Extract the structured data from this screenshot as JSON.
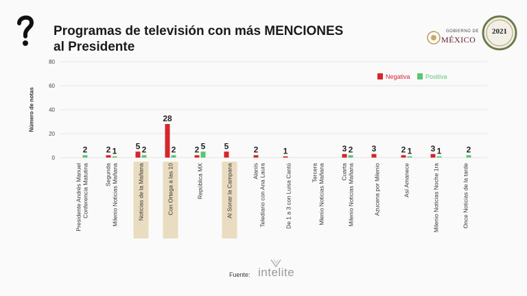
{
  "header": {
    "title_line1": "Programas de televisión con más MENCIONES",
    "title_line2": "al Presidente"
  },
  "logos": {
    "gov_small": "GOBIERNO DE",
    "gov_main": "MÉXICO",
    "seal_text": "2021"
  },
  "footer": {
    "source_label": "Fuente:",
    "brand": "intelite"
  },
  "colors": {
    "negativa": "#d7262b",
    "positiva": "#58c774",
    "highlight": "#e9dcc0"
  },
  "chart_data": {
    "type": "bar",
    "ylabel": "Número de notas",
    "ylim": [
      0,
      80
    ],
    "yticks": [
      0,
      20,
      40,
      60,
      80
    ],
    "legend": {
      "position": "top-right"
    },
    "categories": [
      [
        "Conferencia Matutina",
        "Presidente Andrés Manuel"
      ],
      [
        "Milenio Noticias Mañana",
        "Segunda"
      ],
      [
        "Noticias de la Mañana"
      ],
      [
        "Con Ortega a las 10"
      ],
      [
        "República MX"
      ],
      [
        "Al Sonar la Campana"
      ],
      [
        "Telediario con Ana Laura",
        "Alanís"
      ],
      [
        "De 1 a 3 con Luisa Cantú"
      ],
      [
        "Mlenio Noticias Mañana",
        "Tercera"
      ],
      [
        "Milenio Noticias Mañana",
        "Cuarta"
      ],
      [
        "Azucena por Milenio"
      ],
      [
        "Así Amanece"
      ],
      [
        "Milenio Noticias Noche 1ra"
      ],
      [
        "Once Noticias de la tarde"
      ]
    ],
    "highlighted": [
      2,
      3,
      5
    ],
    "series": [
      {
        "name": "Negativa",
        "values": [
          null,
          2,
          5,
          28,
          2,
          5,
          2,
          1,
          null,
          3,
          3,
          2,
          3,
          null
        ]
      },
      {
        "name": "Positiva",
        "values": [
          2,
          1,
          2,
          2,
          5,
          null,
          null,
          null,
          null,
          2,
          null,
          1,
          1,
          2
        ]
      }
    ]
  }
}
